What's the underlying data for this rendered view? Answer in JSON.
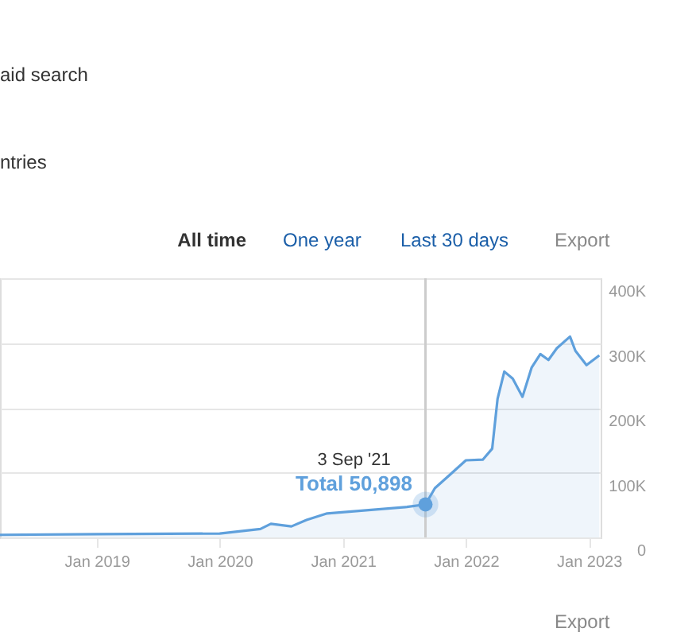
{
  "chart_data": {
    "type": "area",
    "x": [
      "2018-03-20",
      "2019-01",
      "2020-01",
      "2020-05",
      "2020-06",
      "2020-08",
      "2020-09-15",
      "2020-11-15",
      "2021-07-10",
      "2021-09-03",
      "2021-10-01",
      "2021-11-15",
      "2022-01",
      "2022-02-20",
      "2022-03-20",
      "2022-04-05",
      "2022-04-25",
      "2022-05-20",
      "2022-06-18",
      "2022-07-15",
      "2022-08-10",
      "2022-09-03",
      "2022-09-28",
      "2022-11-06",
      "2022-11-22",
      "2022-12-25",
      "2023-02-01"
    ],
    "series": [
      {
        "color": "#5fa0dc",
        "values": [
          4000,
          5000,
          6000,
          13000,
          21000,
          17000,
          27000,
          37000,
          47000,
          50898,
          76000,
          97000,
          119000,
          120000,
          137000,
          214000,
          256000,
          245000,
          217000,
          262000,
          283000,
          274000,
          292000,
          310000,
          288000,
          266000,
          281000
        ]
      }
    ],
    "xlim": [
      "2018-03-20",
      "2023-02-05"
    ],
    "xticks": [
      {
        "value": "2019-01",
        "label": "Jan 2019"
      },
      {
        "value": "2020-01",
        "label": "Jan 2020"
      },
      {
        "value": "2021-01",
        "label": "Jan 2021"
      },
      {
        "value": "2022-01",
        "label": "Jan 2022"
      },
      {
        "value": "2023-01",
        "label": "Jan 2023"
      }
    ],
    "ylim": [
      0,
      400000
    ],
    "yticks": [
      0,
      {
        "value": 100000,
        "label": "100K"
      },
      {
        "value": 200000,
        "label": "200K"
      },
      {
        "value": 300000,
        "label": "300K"
      },
      {
        "value": 400000,
        "label": "400K"
      }
    ],
    "grid": "y",
    "marker": "none",
    "line_style": "solid",
    "ref_lines": [
      {
        "axis": "x",
        "value": "2021-09-03",
        "color": "#cccccc"
      }
    ],
    "annotations": [
      {
        "text": "3 Sep '21",
        "x": "2021-09-03",
        "y": 50898
      },
      {
        "text": "Total 50,898",
        "x": "2021-09-03",
        "y": 50898
      },
      "aid search",
      "ntries",
      "All time",
      "One year",
      "Last 30 days",
      "Export",
      "Export"
    ]
  }
}
